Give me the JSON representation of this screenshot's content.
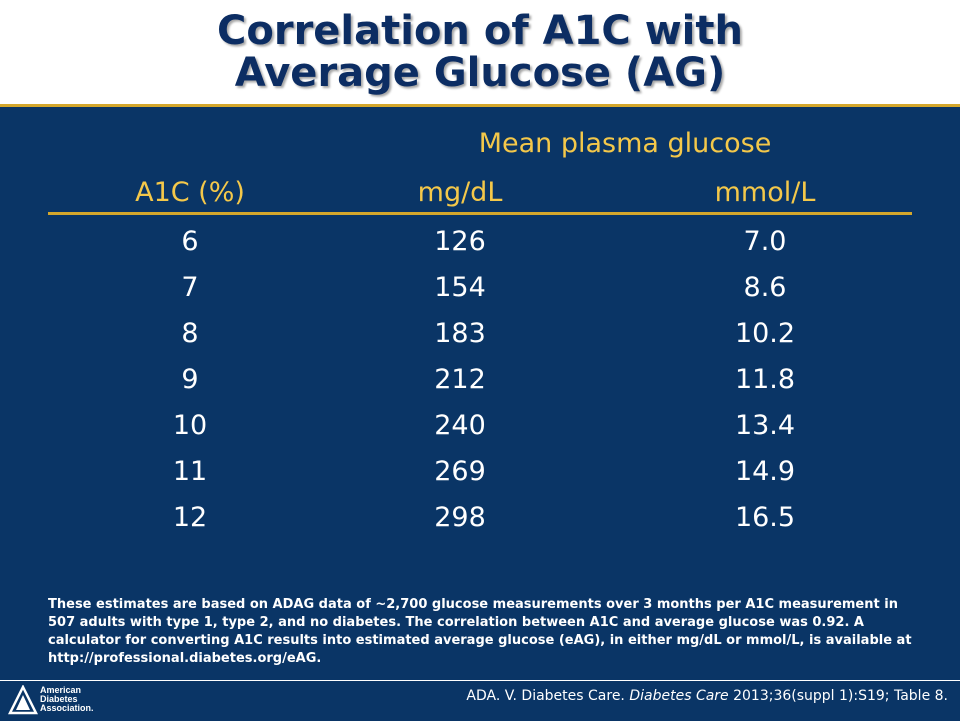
{
  "title": {
    "line1": "Correlation of A1C with",
    "line2": "Average Glucose (AG)"
  },
  "table": {
    "group_header": "Mean plasma glucose",
    "columns": [
      "A1C (%)",
      "mg/dL",
      "mmol/L"
    ],
    "rows": [
      [
        "6",
        "126",
        "7.0"
      ],
      [
        "7",
        "154",
        "8.6"
      ],
      [
        "8",
        "183",
        "10.2"
      ],
      [
        "9",
        "212",
        "11.8"
      ],
      [
        "10",
        "240",
        "13.4"
      ],
      [
        "11",
        "269",
        "14.9"
      ],
      [
        "12",
        "298",
        "16.5"
      ]
    ]
  },
  "note": "These estimates are based on ADAG data of ~2,700 glucose measurements over 3 months per A1C measurement in 507 adults with type 1, type 2, and no diabetes. The correlation between A1C and average glucose was 0.92. A calculator for converting A1C results into estimated average glucose (eAG), in either mg/dL or mmol/L, is available at http://professional.diabetes.org/eAG.",
  "footer": {
    "logo_lines": [
      "American",
      "Diabetes",
      "Association."
    ],
    "citation_prefix": "ADA. V. Diabetes Care. ",
    "citation_journal": "Diabetes Care",
    "citation_suffix": " 2013;36(suppl 1):S19; Table 8."
  },
  "colors": {
    "navy": "#0a3566",
    "gold": "#d4a72c",
    "header_text": "#f4c84a",
    "title": "#0c2d63"
  }
}
